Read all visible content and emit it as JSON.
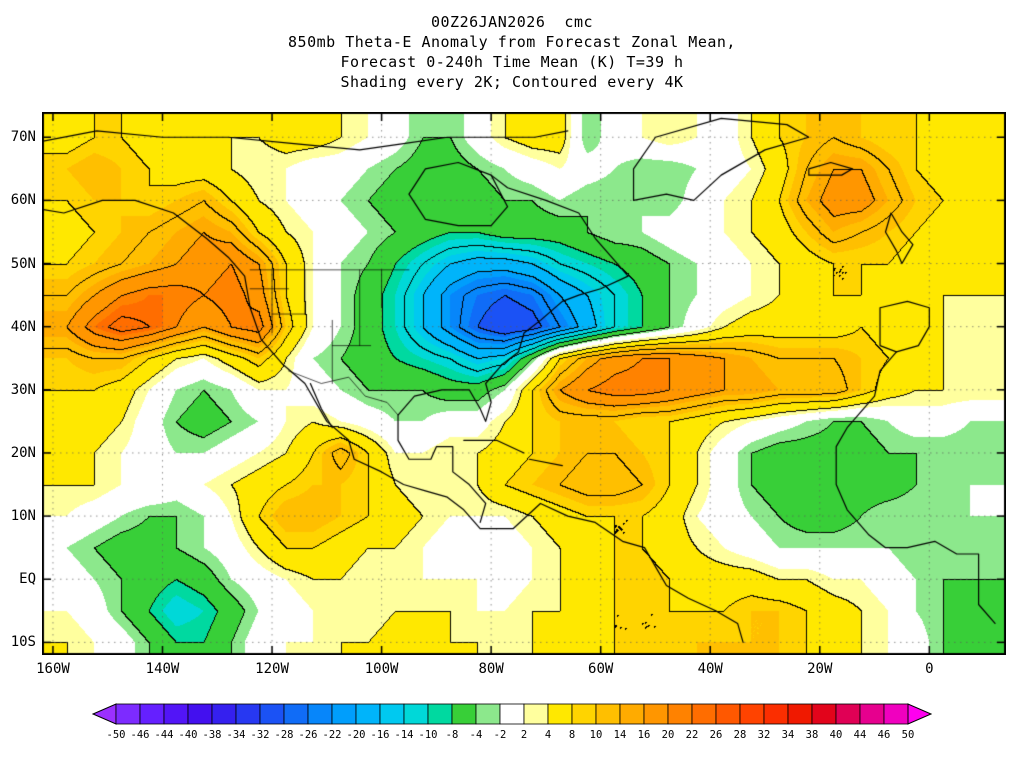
{
  "chart_data": {
    "type": "heatmap",
    "title_lines": [
      "00Z26JAN2026  cmc",
      "850mb Theta-E Anomaly from Forecast Zonal Mean,",
      "Forecast 0-240h Time Mean (K) T=39 h",
      "Shading every 2K; Contoured every 4K"
    ],
    "units": "K",
    "shading_step": 2,
    "contour_step": 4,
    "x_axis": {
      "ticks": [
        "160W",
        "140W",
        "120W",
        "100W",
        "80W",
        "60W",
        "40W",
        "20W",
        "0"
      ],
      "tick_values": [
        -160,
        -140,
        -120,
        -100,
        -80,
        -60,
        -40,
        -20,
        0
      ],
      "range": [
        -162,
        14
      ]
    },
    "y_axis": {
      "ticks": [
        "70N",
        "60N",
        "50N",
        "40N",
        "30N",
        "20N",
        "10N",
        "EQ",
        "10S"
      ],
      "tick_values": [
        70,
        60,
        50,
        40,
        30,
        20,
        10,
        0,
        -10
      ],
      "range": [
        -12,
        74
      ]
    },
    "colorbar": {
      "labels": [
        "-50",
        "-46",
        "-44",
        "-40",
        "-38",
        "-34",
        "-32",
        "-28",
        "-26",
        "-22",
        "-20",
        "-16",
        "-14",
        "-10",
        "-8",
        "-4",
        "-2",
        "2",
        "4",
        "8",
        "10",
        "14",
        "16",
        "20",
        "22",
        "26",
        "28",
        "32",
        "34",
        "38",
        "40",
        "44",
        "46",
        "50"
      ],
      "boundaries": [
        -50,
        -46,
        -44,
        -40,
        -38,
        -34,
        -32,
        -28,
        -26,
        -22,
        -20,
        -16,
        -14,
        -10,
        -8,
        -4,
        -2,
        2,
        4,
        8,
        10,
        14,
        16,
        20,
        22,
        26,
        28,
        32,
        34,
        38,
        40,
        44,
        46,
        50
      ],
      "colors": [
        "#9b30ff",
        "#7d2bff",
        "#6520ff",
        "#5215f7",
        "#4310ef",
        "#3520ef",
        "#2738f2",
        "#1b52f5",
        "#106cf7",
        "#0786fa",
        "#009efc",
        "#00b4fa",
        "#00c9f0",
        "#00d8d8",
        "#00d9a0",
        "#38cf38",
        "#8ce88c",
        "#ffffff",
        "#ffff9e",
        "#ffe800",
        "#ffd400",
        "#ffbf00",
        "#ffab00",
        "#ff9600",
        "#ff8200",
        "#ff6d00",
        "#ff5800",
        "#ff4300",
        "#fb2e00",
        "#f01900",
        "#e2041b",
        "#e00055",
        "#e6008e",
        "#f000bf",
        "#ff00ef"
      ]
    },
    "grid": {
      "lon_start": -157.5,
      "lon_step": 5,
      "lat_start": 70,
      "lat_step": -5,
      "values": [
        [
          6,
          8,
          8,
          6,
          6,
          4,
          4,
          4,
          6,
          6,
          4,
          2,
          0,
          -4,
          -4,
          0,
          4,
          6,
          6,
          -4,
          0,
          2,
          4,
          2,
          0,
          4,
          8,
          10,
          12,
          10,
          8,
          8,
          6,
          6
        ],
        [
          10,
          12,
          10,
          8,
          6,
          6,
          4,
          2,
          2,
          0,
          0,
          -2,
          -4,
          -6,
          -6,
          -4,
          -2,
          0,
          2,
          0,
          -2,
          -4,
          -4,
          -2,
          0,
          2,
          6,
          12,
          16,
          16,
          12,
          8,
          6,
          6
        ],
        [
          8,
          10,
          10,
          8,
          10,
          12,
          8,
          4,
          2,
          0,
          -2,
          -4,
          -6,
          -8,
          -8,
          -6,
          -4,
          -4,
          -2,
          -4,
          -4,
          -2,
          -4,
          0,
          2,
          4,
          8,
          14,
          18,
          18,
          14,
          10,
          8,
          6
        ],
        [
          6,
          8,
          10,
          12,
          14,
          16,
          14,
          8,
          4,
          2,
          0,
          -2,
          -4,
          -6,
          -8,
          -8,
          -6,
          -6,
          -6,
          -4,
          -2,
          -2,
          0,
          2,
          2,
          4,
          6,
          10,
          14,
          12,
          10,
          8,
          6,
          4
        ],
        [
          8,
          10,
          12,
          14,
          16,
          18,
          20,
          16,
          8,
          2,
          -2,
          -4,
          -8,
          -12,
          -16,
          -18,
          -18,
          -16,
          -12,
          -10,
          -8,
          -6,
          -4,
          -2,
          0,
          2,
          4,
          6,
          8,
          8,
          8,
          6,
          6,
          4
        ],
        [
          12,
          16,
          20,
          22,
          22,
          20,
          22,
          18,
          8,
          2,
          -2,
          -6,
          -10,
          -16,
          -22,
          -26,
          -28,
          -26,
          -20,
          -16,
          -12,
          -8,
          -4,
          -2,
          0,
          2,
          4,
          6,
          8,
          8,
          6,
          6,
          4,
          4
        ],
        [
          16,
          22,
          26,
          24,
          20,
          16,
          20,
          22,
          10,
          2,
          -2,
          -6,
          -10,
          -16,
          -22,
          -28,
          -32,
          -30,
          -24,
          -18,
          -12,
          -8,
          -4,
          0,
          4,
          6,
          6,
          6,
          6,
          8,
          6,
          4,
          4,
          2
        ],
        [
          10,
          12,
          12,
          8,
          4,
          2,
          6,
          10,
          4,
          -2,
          -4,
          -6,
          -8,
          -10,
          -12,
          -16,
          -14,
          -4,
          8,
          14,
          18,
          20,
          20,
          18,
          16,
          14,
          12,
          12,
          12,
          10,
          8,
          6,
          4,
          2
        ],
        [
          8,
          8,
          6,
          2,
          -2,
          -4,
          -2,
          2,
          2,
          0,
          -2,
          -4,
          -4,
          -4,
          -6,
          -6,
          -2,
          8,
          16,
          20,
          22,
          22,
          20,
          18,
          16,
          16,
          14,
          14,
          14,
          10,
          6,
          4,
          4,
          4
        ],
        [
          6,
          6,
          4,
          0,
          -4,
          -6,
          -4,
          -2,
          2,
          4,
          2,
          0,
          -2,
          -2,
          0,
          0,
          4,
          8,
          10,
          10,
          10,
          8,
          8,
          6,
          4,
          2,
          0,
          -2,
          -4,
          -4,
          -2,
          0,
          0,
          -2
        ],
        [
          6,
          4,
          2,
          0,
          -2,
          -2,
          0,
          2,
          4,
          8,
          14,
          8,
          2,
          2,
          4,
          4,
          6,
          8,
          10,
          12,
          12,
          10,
          8,
          4,
          0,
          -4,
          -6,
          -6,
          -6,
          -6,
          -4,
          -4,
          -4,
          -4
        ],
        [
          4,
          4,
          2,
          2,
          0,
          2,
          4,
          6,
          8,
          10,
          10,
          8,
          4,
          2,
          2,
          4,
          8,
          10,
          12,
          14,
          14,
          12,
          8,
          4,
          0,
          -4,
          -6,
          -8,
          -8,
          -6,
          -6,
          -4,
          -4,
          -2
        ],
        [
          2,
          0,
          -2,
          -4,
          -4,
          -2,
          2,
          8,
          12,
          12,
          10,
          8,
          6,
          4,
          2,
          2,
          2,
          4,
          6,
          8,
          8,
          8,
          6,
          2,
          0,
          -2,
          -4,
          -6,
          -6,
          -4,
          -2,
          -2,
          -2,
          -2
        ],
        [
          -2,
          -4,
          -6,
          -6,
          -4,
          -2,
          0,
          4,
          8,
          8,
          6,
          4,
          4,
          2,
          0,
          0,
          0,
          2,
          4,
          6,
          8,
          8,
          6,
          4,
          2,
          0,
          -2,
          -2,
          -2,
          -2,
          -2,
          -4,
          -4,
          -4
        ],
        [
          0,
          -2,
          -4,
          -6,
          -8,
          -6,
          -2,
          0,
          2,
          4,
          4,
          2,
          2,
          2,
          2,
          2,
          0,
          2,
          4,
          6,
          8,
          10,
          8,
          6,
          6,
          6,
          4,
          4,
          2,
          2,
          0,
          -2,
          -4,
          -4
        ],
        [
          2,
          0,
          -4,
          -8,
          -12,
          -10,
          -6,
          -2,
          0,
          2,
          2,
          2,
          4,
          4,
          4,
          2,
          2,
          4,
          4,
          6,
          8,
          8,
          8,
          8,
          8,
          10,
          10,
          8,
          6,
          4,
          2,
          -2,
          -4,
          -6
        ],
        [
          4,
          2,
          0,
          -4,
          -8,
          -8,
          -4,
          0,
          2,
          2,
          4,
          4,
          6,
          6,
          4,
          4,
          2,
          4,
          6,
          6,
          8,
          8,
          8,
          10,
          10,
          10,
          10,
          8,
          6,
          4,
          2,
          0,
          -4,
          -6
        ]
      ]
    },
    "coastlines": [
      [
        [
          -165,
          59
        ],
        [
          -158,
          58
        ],
        [
          -151,
          60
        ],
        [
          -145,
          60
        ],
        [
          -138,
          58
        ],
        [
          -132,
          54
        ],
        [
          -128,
          51
        ],
        [
          -125,
          48
        ],
        [
          -124,
          43
        ],
        [
          -122,
          38
        ],
        [
          -118,
          34
        ],
        [
          -114,
          31
        ],
        [
          -110,
          25
        ],
        [
          -106,
          22
        ],
        [
          -105,
          19
        ],
        [
          -100,
          17
        ],
        [
          -96,
          15
        ],
        [
          -92,
          14
        ],
        [
          -88,
          13
        ],
        [
          -85,
          11
        ],
        [
          -82,
          8
        ],
        [
          -79,
          8
        ]
      ],
      [
        [
          -113,
          31
        ],
        [
          -111,
          27
        ],
        [
          -109,
          24
        ]
      ],
      [
        [
          -82,
          9
        ],
        [
          -81,
          12
        ],
        [
          -84,
          15
        ],
        [
          -87,
          17
        ],
        [
          -87,
          21
        ],
        [
          -90,
          21
        ],
        [
          -91,
          19
        ],
        [
          -95,
          19
        ],
        [
          -97,
          22
        ],
        [
          -97,
          26
        ],
        [
          -94,
          29
        ],
        [
          -89,
          30
        ],
        [
          -84,
          30
        ],
        [
          -82,
          27
        ],
        [
          -81,
          25
        ],
        [
          -80,
          28
        ],
        [
          -81,
          31
        ],
        [
          -78,
          34
        ],
        [
          -75,
          36
        ],
        [
          -74,
          39
        ],
        [
          -71,
          41
        ],
        [
          -67,
          44
        ],
        [
          -64,
          45
        ],
        [
          -60,
          46
        ],
        [
          -55,
          48
        ],
        [
          -58,
          51
        ],
        [
          -61,
          54
        ],
        [
          -64,
          58
        ],
        [
          -70,
          60
        ],
        [
          -77,
          62
        ],
        [
          -80,
          64
        ]
      ],
      [
        [
          -80,
          64
        ],
        [
          -86,
          66
        ],
        [
          -92,
          65
        ],
        [
          -95,
          61
        ],
        [
          -92,
          57
        ],
        [
          -86,
          56
        ],
        [
          -80,
          56
        ],
        [
          -77,
          59
        ],
        [
          -80,
          64
        ]
      ],
      [
        [
          -164,
          69
        ],
        [
          -152,
          71
        ],
        [
          -140,
          70
        ],
        [
          -128,
          70
        ],
        [
          -116,
          69
        ],
        [
          -104,
          68
        ],
        [
          -96,
          69
        ],
        [
          -88,
          70
        ],
        [
          -80,
          70
        ],
        [
          -72,
          70
        ],
        [
          -66,
          71
        ]
      ],
      [
        [
          -54,
          60
        ],
        [
          -48,
          61
        ],
        [
          -43,
          60
        ],
        [
          -38,
          64
        ],
        [
          -30,
          68
        ],
        [
          -22,
          70
        ],
        [
          -26,
          72
        ],
        [
          -38,
          73
        ],
        [
          -50,
          70
        ],
        [
          -54,
          65
        ],
        [
          -54,
          60
        ]
      ],
      [
        [
          -85,
          22
        ],
        [
          -79,
          22
        ],
        [
          -74,
          20
        ]
      ],
      [
        [
          -73,
          19
        ],
        [
          -67,
          18
        ]
      ],
      [
        [
          -79,
          8
        ],
        [
          -76,
          8
        ],
        [
          -71,
          12
        ],
        [
          -66,
          10
        ],
        [
          -61,
          9
        ],
        [
          -56,
          6
        ],
        [
          -52,
          5
        ],
        [
          -50,
          2
        ],
        [
          -48,
          -1
        ],
        [
          -44,
          -3
        ],
        [
          -39,
          -5
        ],
        [
          -35,
          -7
        ],
        [
          -34,
          -10
        ]
      ],
      [
        [
          -6,
          36
        ],
        [
          -9,
          33
        ],
        [
          -10,
          29
        ],
        [
          -15,
          24
        ],
        [
          -17,
          21
        ],
        [
          -17,
          15
        ],
        [
          -15,
          11
        ],
        [
          -11,
          7
        ],
        [
          -8,
          5
        ],
        [
          -4,
          5
        ],
        [
          1,
          6
        ],
        [
          5,
          4
        ],
        [
          9,
          4
        ],
        [
          9,
          0
        ],
        [
          9,
          -4
        ],
        [
          12,
          -7
        ]
      ],
      [
        [
          -9,
          43
        ],
        [
          -9,
          37
        ],
        [
          -6,
          36
        ],
        [
          -2,
          37
        ],
        [
          0,
          40
        ],
        [
          0,
          43
        ],
        [
          -4,
          44
        ],
        [
          -9,
          43
        ]
      ],
      [
        [
          -5,
          50
        ],
        [
          -3,
          53
        ],
        [
          -5,
          55
        ],
        [
          -7,
          58
        ],
        [
          -8,
          55
        ],
        [
          -6,
          52
        ],
        [
          -5,
          50
        ]
      ],
      [
        [
          -22,
          64
        ],
        [
          -16,
          64
        ],
        [
          -14,
          65
        ],
        [
          -18,
          66
        ],
        [
          -22,
          65
        ],
        [
          -22,
          64
        ]
      ]
    ],
    "borders": [
      [
        [
          -124,
          49
        ],
        [
          -95,
          49
        ]
      ],
      [
        [
          -117,
          33
        ],
        [
          -111,
          31
        ],
        [
          -106,
          32
        ],
        [
          -103,
          29
        ],
        [
          -99,
          28
        ],
        [
          -97,
          26
        ]
      ],
      [
        [
          -120,
          49
        ],
        [
          -120,
          39
        ]
      ],
      [
        [
          -114,
          49
        ],
        [
          -114,
          42
        ]
      ],
      [
        [
          -104,
          49
        ],
        [
          -104,
          37
        ]
      ],
      [
        [
          -109,
          41
        ],
        [
          -109,
          31
        ]
      ],
      [
        [
          -100,
          49
        ],
        [
          -100,
          43
        ]
      ],
      [
        [
          -120,
          42
        ],
        [
          -114,
          42
        ]
      ],
      [
        [
          -109,
          37
        ],
        [
          -102,
          37
        ]
      ],
      [
        [
          -124,
          46
        ],
        [
          -117,
          46
        ]
      ]
    ]
  }
}
